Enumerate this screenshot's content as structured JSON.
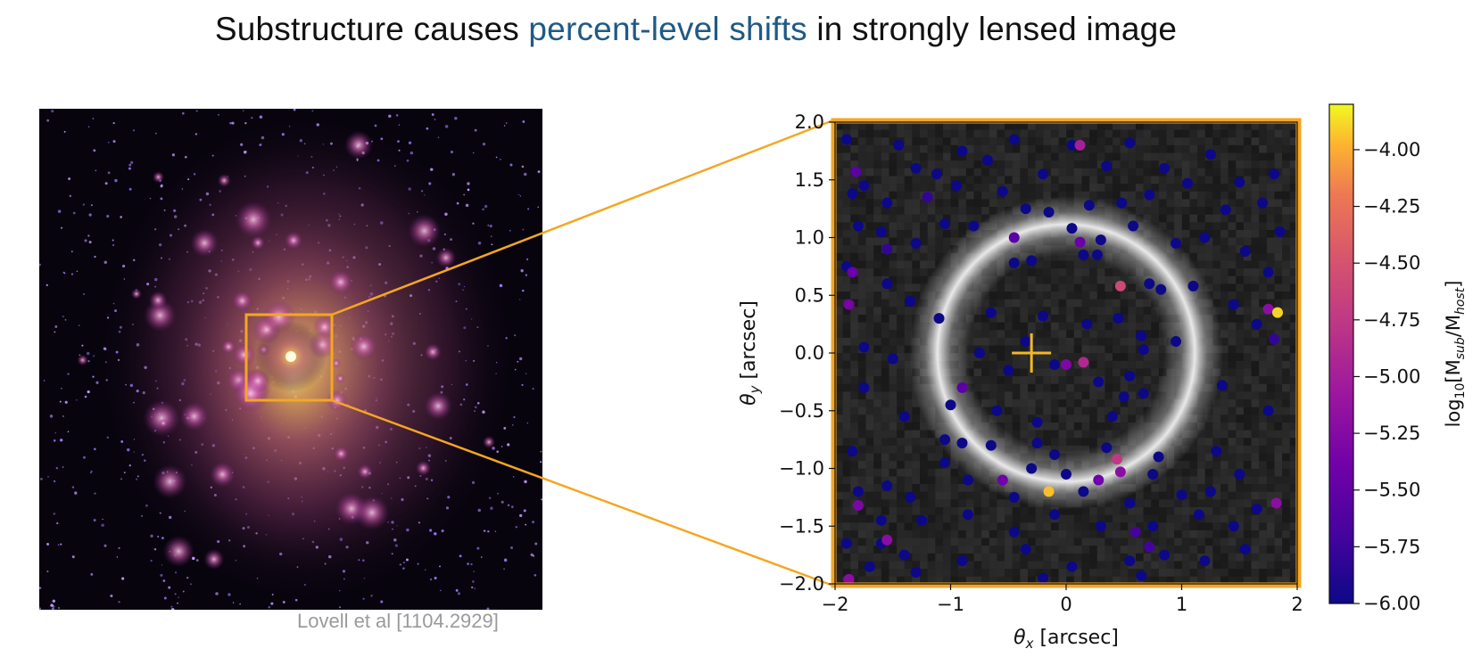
{
  "slide": {
    "title_prefix": "Substructure causes ",
    "title_highlight": "percent-level shifts",
    "title_suffix": " in strongly lensed image",
    "credit": "Lovell et al [1104.2929]",
    "highlight_color": "#1f5a86",
    "zoom_box_color": "#f5a623"
  },
  "chart_data": {
    "type": "scatter",
    "xlabel_prefix": "θ",
    "xlabel_sub": "x",
    "xlabel_suffix": " [arcsec]",
    "ylabel_prefix": "θ",
    "ylabel_sub": "y",
    "ylabel_suffix": " [arcsec]",
    "xlim": [
      -2,
      2
    ],
    "ylim": [
      -2,
      2
    ],
    "xticks": [
      -2,
      -1,
      0,
      1,
      2
    ],
    "yticks": [
      -2.0,
      -1.5,
      -1.0,
      -0.5,
      0.0,
      0.5,
      1.0,
      1.5,
      2.0
    ],
    "xtick_labels": [
      "−2",
      "−1",
      "0",
      "1",
      "2"
    ],
    "ytick_labels": [
      "−2.0",
      "−1.5",
      "−1.0",
      "−0.5",
      "0.0",
      "0.5",
      "1.0",
      "1.5",
      "2.0"
    ],
    "background": "grayscale Einstein ring image",
    "einstein_ring": {
      "center": [
        0.0,
        0.0
      ],
      "radius": 0.95
    },
    "lens_center_marker": {
      "x": -0.3,
      "y": 0.0,
      "color": "#f2b824"
    },
    "colorbar": {
      "label_prefix": "log",
      "label_base": "10",
      "label_suffix": "[M",
      "label_sub1": "sub",
      "label_mid": "/M",
      "label_sub2": "host",
      "label_end": "]",
      "range": [
        -6.0,
        -3.8
      ],
      "ticks": [
        -4.0,
        -4.25,
        -4.5,
        -4.75,
        -5.0,
        -5.25,
        -5.5,
        -5.75,
        -6.0
      ],
      "tick_labels": [
        "−4.00",
        "−4.25",
        "−4.50",
        "−4.75",
        "−5.00",
        "−5.25",
        "−5.50",
        "−5.75",
        "−6.00"
      ],
      "colormap": "plasma"
    },
    "series": [
      {
        "points": [
          {
            "x": -1.9,
            "y": 1.85,
            "v": -6.0
          },
          {
            "x": -1.75,
            "y": 1.45,
            "v": -6.0
          },
          {
            "x": -1.45,
            "y": 1.8,
            "v": -6.0
          },
          {
            "x": -1.3,
            "y": 1.6,
            "v": -6.0
          },
          {
            "x": -1.12,
            "y": 1.55,
            "v": -6.0
          },
          {
            "x": -0.9,
            "y": 1.75,
            "v": -6.0
          },
          {
            "x": -0.68,
            "y": 1.67,
            "v": -6.0
          },
          {
            "x": -0.45,
            "y": 1.85,
            "v": -6.0
          },
          {
            "x": -0.2,
            "y": 1.55,
            "v": -6.0
          },
          {
            "x": 0.05,
            "y": 1.8,
            "v": -6.0
          },
          {
            "x": 0.35,
            "y": 1.62,
            "v": -6.0
          },
          {
            "x": 0.55,
            "y": 1.82,
            "v": -6.0
          },
          {
            "x": 0.85,
            "y": 1.6,
            "v": -6.0
          },
          {
            "x": 1.25,
            "y": 1.72,
            "v": -6.0
          },
          {
            "x": 1.5,
            "y": 1.48,
            "v": -6.0
          },
          {
            "x": 1.8,
            "y": 1.55,
            "v": -6.0
          },
          {
            "x": -1.85,
            "y": 1.38,
            "v": -6.0
          },
          {
            "x": -1.55,
            "y": 1.3,
            "v": -6.0
          },
          {
            "x": -0.95,
            "y": 1.45,
            "v": -6.0
          },
          {
            "x": -0.55,
            "y": 1.4,
            "v": -6.0
          },
          {
            "x": -0.35,
            "y": 1.25,
            "v": -6.0
          },
          {
            "x": -0.15,
            "y": 1.22,
            "v": -6.0
          },
          {
            "x": 0.2,
            "y": 1.28,
            "v": -6.0
          },
          {
            "x": 0.48,
            "y": 1.3,
            "v": -6.0
          },
          {
            "x": 0.72,
            "y": 1.37,
            "v": -6.0
          },
          {
            "x": 1.05,
            "y": 1.47,
            "v": -6.0
          },
          {
            "x": 1.38,
            "y": 1.24,
            "v": -6.0
          },
          {
            "x": 1.7,
            "y": 1.3,
            "v": -6.0
          },
          {
            "x": -1.8,
            "y": 1.1,
            "v": -6.0
          },
          {
            "x": -1.6,
            "y": 1.05,
            "v": -6.0
          },
          {
            "x": -1.3,
            "y": 0.95,
            "v": -6.0
          },
          {
            "x": -1.05,
            "y": 1.12,
            "v": -6.0
          },
          {
            "x": -0.8,
            "y": 1.1,
            "v": -6.0
          },
          {
            "x": 0.05,
            "y": 1.08,
            "v": -6.0
          },
          {
            "x": 0.3,
            "y": 0.98,
            "v": -6.0
          },
          {
            "x": 0.58,
            "y": 1.1,
            "v": -6.0
          },
          {
            "x": 0.95,
            "y": 0.95,
            "v": -6.0
          },
          {
            "x": 1.2,
            "y": 1.0,
            "v": -6.0
          },
          {
            "x": 1.55,
            "y": 0.88,
            "v": -6.0
          },
          {
            "x": 1.85,
            "y": 1.05,
            "v": -6.0
          },
          {
            "x": -1.9,
            "y": 0.75,
            "v": -6.0
          },
          {
            "x": -1.55,
            "y": 0.6,
            "v": -6.0
          },
          {
            "x": -1.35,
            "y": 0.45,
            "v": -6.0
          },
          {
            "x": -0.45,
            "y": 0.78,
            "v": -6.0
          },
          {
            "x": -0.3,
            "y": 0.8,
            "v": -6.0
          },
          {
            "x": 0.15,
            "y": 0.85,
            "v": -6.0
          },
          {
            "x": 0.27,
            "y": 0.85,
            "v": -6.0
          },
          {
            "x": 0.72,
            "y": 0.6,
            "v": -6.0
          },
          {
            "x": 0.82,
            "y": 0.55,
            "v": -6.0
          },
          {
            "x": 1.1,
            "y": 0.58,
            "v": -6.0
          },
          {
            "x": 1.45,
            "y": 0.42,
            "v": -6.0
          },
          {
            "x": 1.75,
            "y": 0.7,
            "v": -6.0
          },
          {
            "x": -1.1,
            "y": 0.3,
            "v": -6.0
          },
          {
            "x": -0.65,
            "y": 0.35,
            "v": -6.0
          },
          {
            "x": -0.2,
            "y": 0.32,
            "v": -6.0
          },
          {
            "x": 0.18,
            "y": 0.25,
            "v": -6.0
          },
          {
            "x": 0.45,
            "y": 0.3,
            "v": -6.0
          },
          {
            "x": 0.65,
            "y": 0.15,
            "v": -6.0
          },
          {
            "x": 0.67,
            "y": 0.03,
            "v": -6.0
          },
          {
            "x": 0.95,
            "y": 0.1,
            "v": -6.0
          },
          {
            "x": 1.65,
            "y": 0.25,
            "v": -6.0
          },
          {
            "x": -1.75,
            "y": 0.05,
            "v": -6.0
          },
          {
            "x": -1.5,
            "y": -0.05,
            "v": -6.0
          },
          {
            "x": -0.75,
            "y": 0.0,
            "v": -6.0
          },
          {
            "x": -0.5,
            "y": -0.15,
            "v": -6.0
          },
          {
            "x": -0.35,
            "y": 0.1,
            "v": -6.0
          },
          {
            "x": -0.1,
            "y": -0.1,
            "v": -6.0
          },
          {
            "x": 0.28,
            "y": -0.25,
            "v": -6.0
          },
          {
            "x": 0.55,
            "y": -0.2,
            "v": -6.0
          },
          {
            "x": 0.67,
            "y": -0.35,
            "v": -6.0
          },
          {
            "x": 0.5,
            "y": -0.38,
            "v": -6.0
          },
          {
            "x": 1.35,
            "y": -0.28,
            "v": -6.0
          },
          {
            "x": -1.75,
            "y": -0.3,
            "v": -6.0
          },
          {
            "x": -1.4,
            "y": -0.55,
            "v": -6.0
          },
          {
            "x": -1.0,
            "y": -0.45,
            "v": -6.0
          },
          {
            "x": -0.6,
            "y": -0.5,
            "v": -6.0
          },
          {
            "x": -0.25,
            "y": -0.6,
            "v": -6.0
          },
          {
            "x": 0.4,
            "y": -0.55,
            "v": -6.0
          },
          {
            "x": 1.75,
            "y": -0.5,
            "v": -6.0
          },
          {
            "x": -1.85,
            "y": -0.85,
            "v": -6.0
          },
          {
            "x": -1.05,
            "y": -0.75,
            "v": -6.0
          },
          {
            "x": -0.9,
            "y": -0.78,
            "v": -6.0
          },
          {
            "x": -0.65,
            "y": -0.8,
            "v": -6.0
          },
          {
            "x": -0.25,
            "y": -0.78,
            "v": -6.0
          },
          {
            "x": -0.1,
            "y": -0.88,
            "v": -6.0
          },
          {
            "x": 0.35,
            "y": -0.82,
            "v": -6.0
          },
          {
            "x": 0.8,
            "y": -0.9,
            "v": -6.0
          },
          {
            "x": 1.3,
            "y": -0.85,
            "v": -6.0
          },
          {
            "x": -1.05,
            "y": -0.95,
            "v": -6.0
          },
          {
            "x": -0.3,
            "y": -1.0,
            "v": -6.0
          },
          {
            "x": 0.0,
            "y": -1.05,
            "v": -6.0
          },
          {
            "x": 0.75,
            "y": -1.05,
            "v": -6.0
          },
          {
            "x": 1.5,
            "y": -1.05,
            "v": -6.0
          },
          {
            "x": -1.8,
            "y": -1.2,
            "v": -6.0
          },
          {
            "x": -1.55,
            "y": -1.15,
            "v": -6.0
          },
          {
            "x": -1.35,
            "y": -1.25,
            "v": -6.0
          },
          {
            "x": -0.85,
            "y": -1.1,
            "v": -6.0
          },
          {
            "x": -0.45,
            "y": -1.25,
            "v": -6.0
          },
          {
            "x": 0.15,
            "y": -1.2,
            "v": -6.0
          },
          {
            "x": 0.55,
            "y": -1.3,
            "v": -6.0
          },
          {
            "x": 1.0,
            "y": -1.23,
            "v": -6.0
          },
          {
            "x": 1.25,
            "y": -1.2,
            "v": -6.0
          },
          {
            "x": 1.65,
            "y": -1.35,
            "v": -6.0
          },
          {
            "x": -1.6,
            "y": -1.45,
            "v": -6.0
          },
          {
            "x": -1.25,
            "y": -1.45,
            "v": -6.0
          },
          {
            "x": -0.85,
            "y": -1.4,
            "v": -6.0
          },
          {
            "x": -0.45,
            "y": -1.55,
            "v": -6.0
          },
          {
            "x": -0.1,
            "y": -1.4,
            "v": -6.0
          },
          {
            "x": 0.3,
            "y": -1.5,
            "v": -6.0
          },
          {
            "x": 0.75,
            "y": -1.5,
            "v": -6.0
          },
          {
            "x": 1.15,
            "y": -1.4,
            "v": -6.0
          },
          {
            "x": 1.45,
            "y": -1.5,
            "v": -6.0
          },
          {
            "x": -1.9,
            "y": -1.65,
            "v": -6.0
          },
          {
            "x": -1.6,
            "y": -1.65,
            "v": -6.0
          },
          {
            "x": -1.4,
            "y": -1.75,
            "v": -6.0
          },
          {
            "x": -0.9,
            "y": -1.8,
            "v": -6.0
          },
          {
            "x": -0.35,
            "y": -1.7,
            "v": -6.0
          },
          {
            "x": 0.05,
            "y": -1.85,
            "v": -6.0
          },
          {
            "x": 0.55,
            "y": -1.8,
            "v": -6.0
          },
          {
            "x": 0.85,
            "y": -1.75,
            "v": -6.0
          },
          {
            "x": 1.2,
            "y": -1.8,
            "v": -6.0
          },
          {
            "x": 1.55,
            "y": -1.7,
            "v": -6.0
          },
          {
            "x": -1.7,
            "y": -1.85,
            "v": -6.0
          },
          {
            "x": -1.3,
            "y": -1.9,
            "v": -6.0
          },
          {
            "x": -0.2,
            "y": -1.95,
            "v": -6.0
          },
          {
            "x": 0.65,
            "y": -1.93,
            "v": -6.0
          },
          {
            "x": -1.55,
            "y": 0.9,
            "v": -5.8
          },
          {
            "x": -1.2,
            "y": 1.35,
            "v": -5.8
          },
          {
            "x": 0.6,
            "y": -1.55,
            "v": -5.7
          },
          {
            "x": 0.72,
            "y": -1.68,
            "v": -5.7
          },
          {
            "x": 1.8,
            "y": 0.12,
            "v": -5.8
          },
          {
            "x": -0.9,
            "y": -0.3,
            "v": -5.55
          },
          {
            "x": -0.45,
            "y": 1.0,
            "v": -5.55
          },
          {
            "x": 0.12,
            "y": 0.96,
            "v": -5.45
          },
          {
            "x": -1.82,
            "y": 1.57,
            "v": -5.55
          },
          {
            "x": -1.85,
            "y": 0.7,
            "v": -5.45
          },
          {
            "x": -1.88,
            "y": 0.42,
            "v": -5.35
          },
          {
            "x": -0.55,
            "y": -1.1,
            "v": -5.4
          },
          {
            "x": 0.0,
            "y": -0.1,
            "v": -5.3
          },
          {
            "x": -1.8,
            "y": -1.32,
            "v": -5.3
          },
          {
            "x": -1.55,
            "y": -1.62,
            "v": -5.2
          },
          {
            "x": 0.28,
            "y": -1.1,
            "v": -5.4
          },
          {
            "x": 0.47,
            "y": -1.03,
            "v": -5.2
          },
          {
            "x": -1.88,
            "y": -1.96,
            "v": -5.2
          },
          {
            "x": 1.75,
            "y": 0.38,
            "v": -5.2
          },
          {
            "x": 1.82,
            "y": -1.3,
            "v": -5.2
          },
          {
            "x": 0.12,
            "y": 1.8,
            "v": -5.0
          },
          {
            "x": 0.15,
            "y": -0.08,
            "v": -4.9
          },
          {
            "x": 0.44,
            "y": -0.92,
            "v": -4.75
          },
          {
            "x": 0.47,
            "y": 0.58,
            "v": -4.6
          },
          {
            "x": -0.15,
            "y": -1.2,
            "v": -3.95
          },
          {
            "x": 1.83,
            "y": 0.35,
            "v": -3.9
          }
        ]
      }
    ]
  }
}
